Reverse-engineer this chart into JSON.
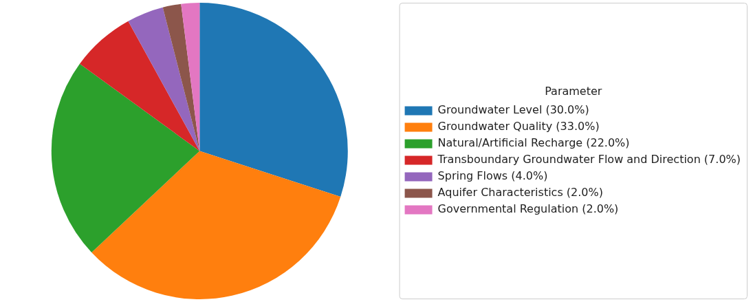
{
  "chart_data": {
    "type": "pie",
    "legend_title": "Parameter",
    "legend": "right",
    "categories": [
      "Groundwater Level (30.0%)",
      "Groundwater Quality (33.0%)",
      "Natural/Artificial Recharge (22.0%)",
      "Transboundary Groundwater Flow and Direction (7.0%)",
      "Spring Flows (4.0%)",
      "Aquifer Characteristics (2.0%)",
      "Governmental Regulation (2.0%)"
    ],
    "values": [
      30,
      33,
      22,
      7,
      4,
      2,
      2
    ],
    "colors": [
      "#1f77b4",
      "#ff7f0e",
      "#2ca02c",
      "#d62728",
      "#9467bd",
      "#8c564b",
      "#e377c2"
    ]
  }
}
